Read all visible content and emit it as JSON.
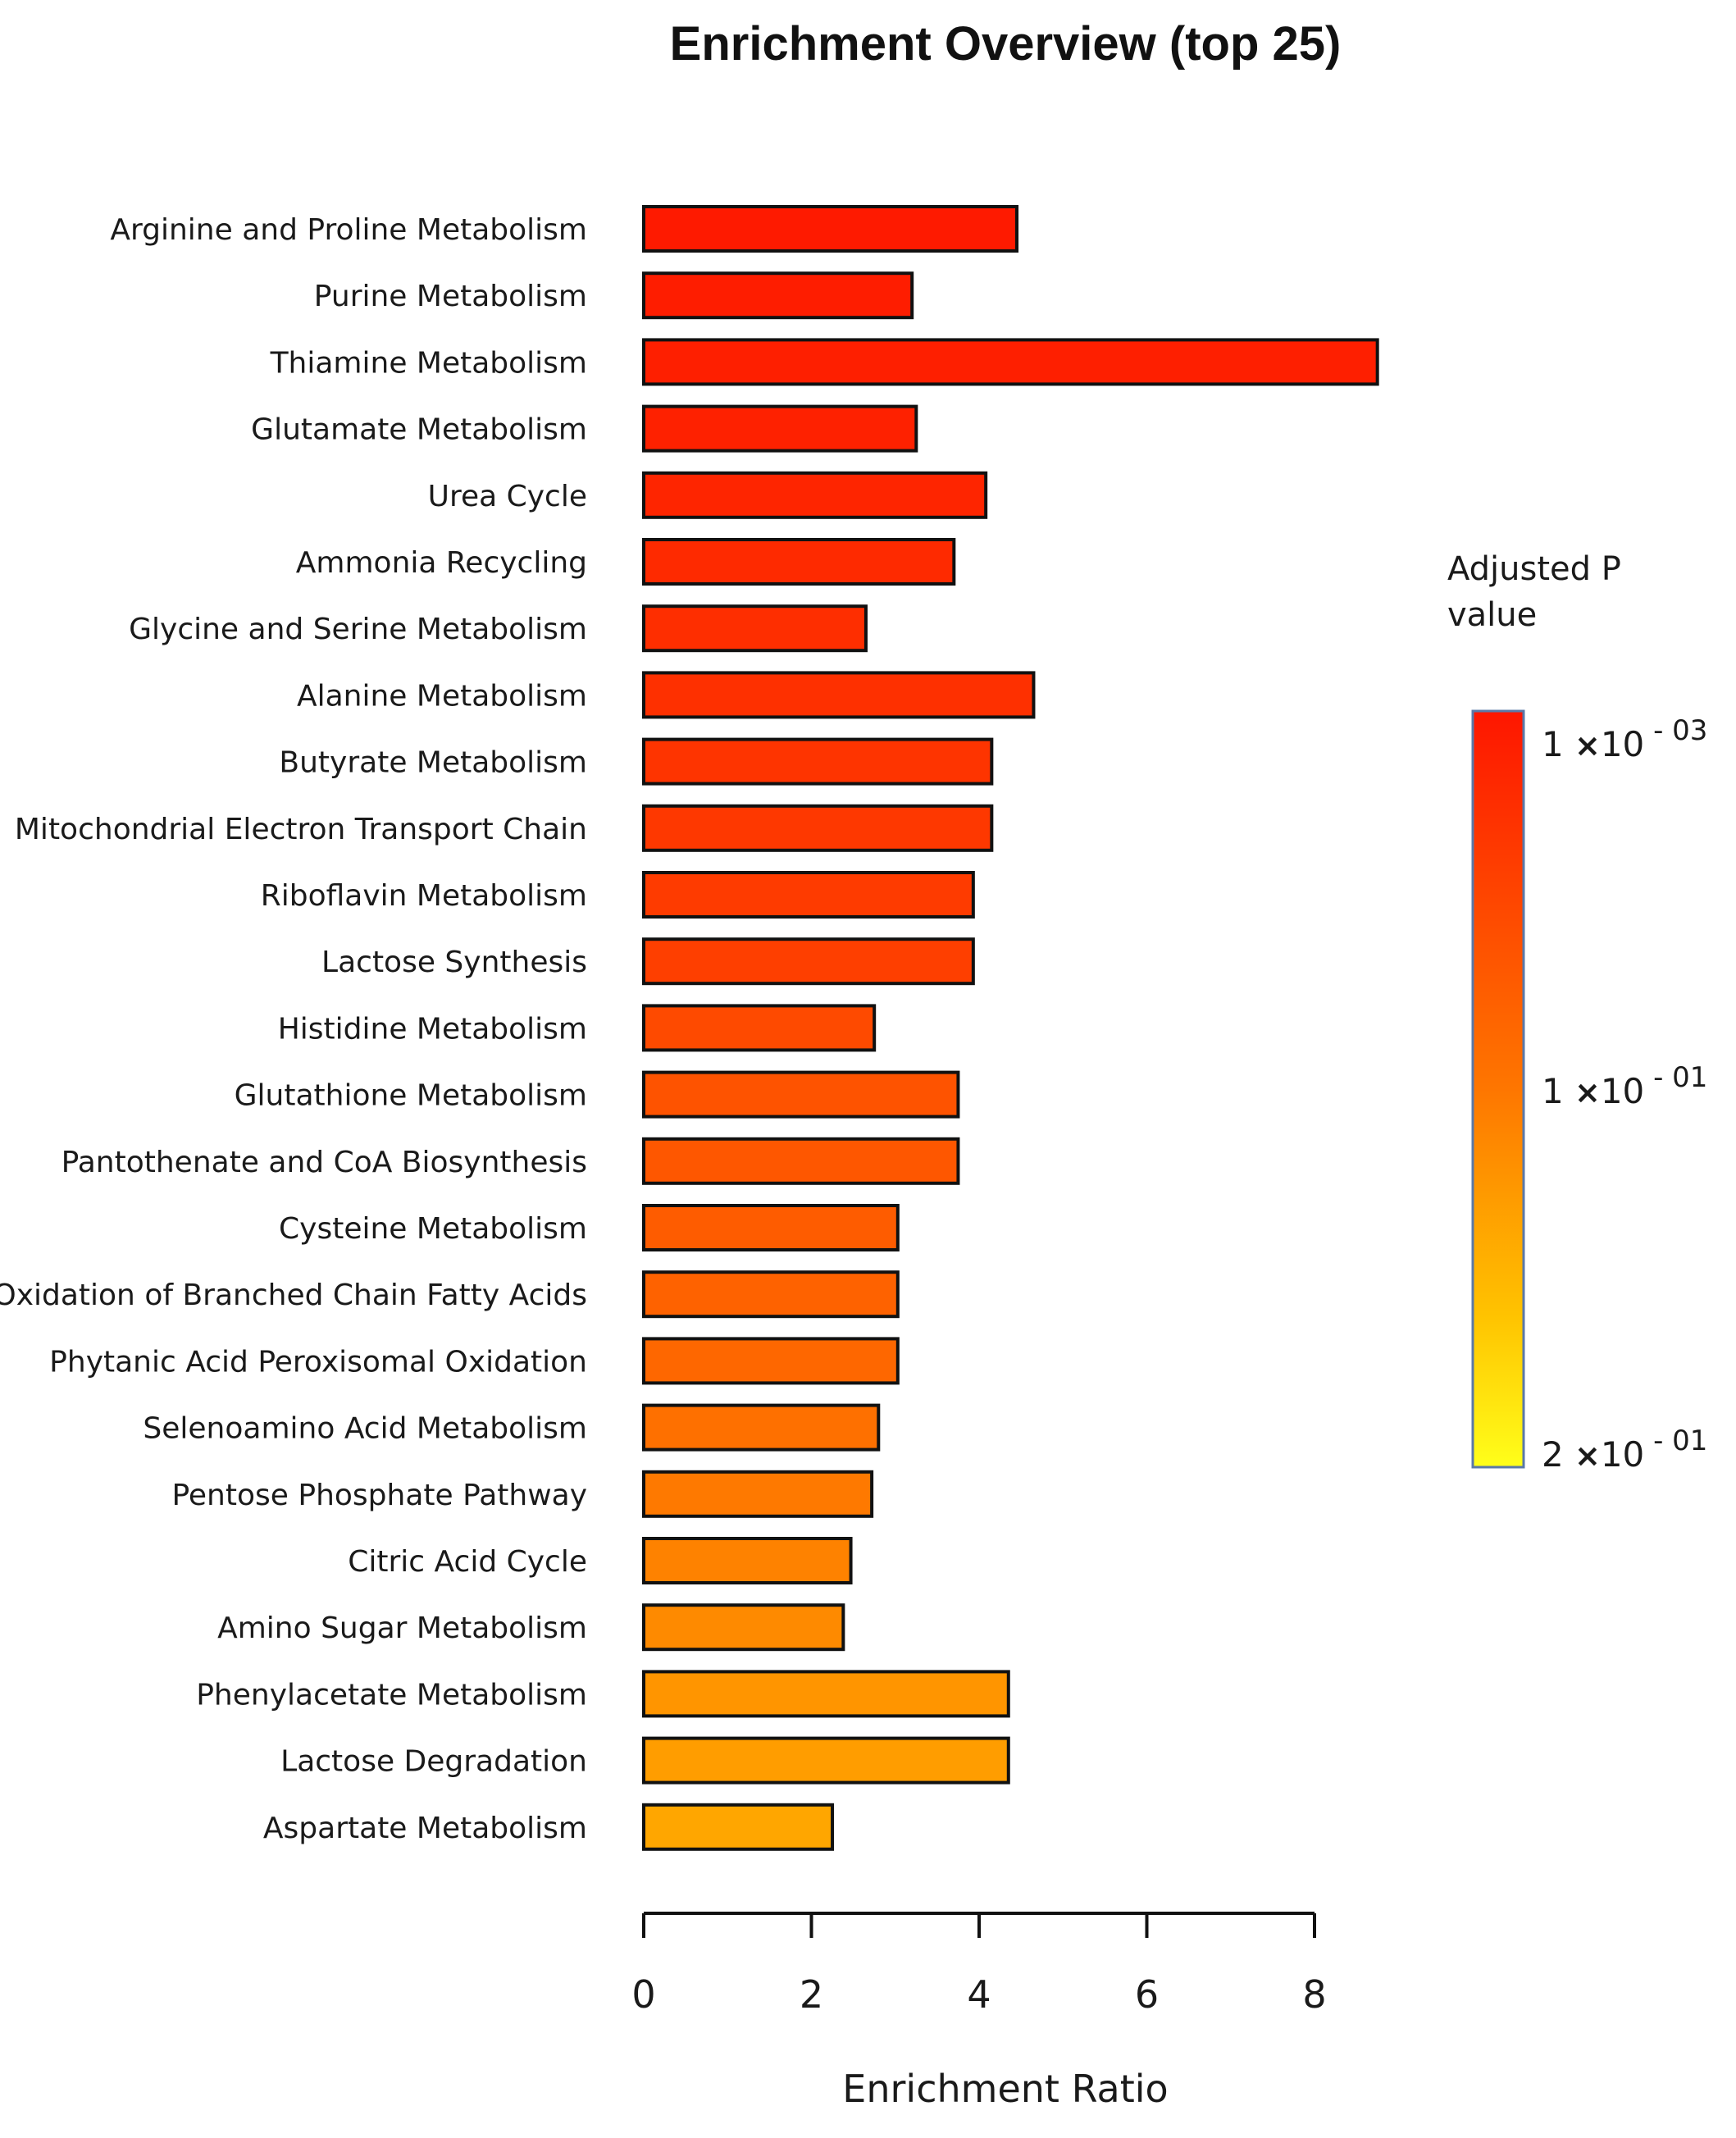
{
  "chart_data": {
    "type": "bar",
    "orientation": "horizontal",
    "title": "Enrichment Overview (top 25)",
    "xlabel": "Enrichment Ratio",
    "ylabel": "",
    "xlim": [
      0,
      8
    ],
    "xticks": [
      0,
      2,
      4,
      6,
      8
    ],
    "categories": [
      "Arginine and Proline Metabolism",
      "Purine Metabolism",
      "Thiamine Metabolism",
      "Glutamate Metabolism",
      "Urea Cycle",
      "Ammonia Recycling",
      "Glycine and Serine Metabolism",
      "Alanine Metabolism",
      "Butyrate Metabolism",
      "Mitochondrial Electron Transport Chain",
      "Riboflavin Metabolism",
      "Lactose Synthesis",
      "Histidine Metabolism",
      "Glutathione Metabolism",
      "Pantothenate and CoA Biosynthesis",
      "Cysteine Metabolism",
      "Oxidation of Branched Chain Fatty Acids",
      "Phytanic Acid Peroxisomal Oxidation",
      "Selenoamino Acid Metabolism",
      "Pentose Phosphate Pathway",
      "Citric Acid Cycle",
      "Amino Sugar Metabolism",
      "Phenylacetate Metabolism",
      "Lactose Degradation",
      "Aspartate Metabolism"
    ],
    "values": [
      4.45,
      3.2,
      8.75,
      3.25,
      4.08,
      3.7,
      2.65,
      4.65,
      4.15,
      4.15,
      3.93,
      3.93,
      2.75,
      3.75,
      3.75,
      3.03,
      3.03,
      3.03,
      2.8,
      2.72,
      2.47,
      2.38,
      4.35,
      4.35,
      2.25
    ],
    "colors": [
      "#fe1a00",
      "#fe1d00",
      "#fe1f00",
      "#fe2100",
      "#fe2500",
      "#fe2a00",
      "#fe2e00",
      "#fe3000",
      "#fe3400",
      "#fe3800",
      "#fe3b00",
      "#fe3f00",
      "#fe4a00",
      "#fe5300",
      "#fe5700",
      "#fe5c00",
      "#fe6200",
      "#fe6700",
      "#fe7000",
      "#fe7900",
      "#fe8200",
      "#fe8a00",
      "#ff9500",
      "#ff9d00",
      "#ffa600"
    ],
    "legend": {
      "title_lines": [
        "Adjusted P",
        "value"
      ],
      "position": "right",
      "labels": [
        {
          "base": "1",
          "times": "×",
          "ten": "10",
          "exp": "- 03"
        },
        {
          "base": "1",
          "times": "×",
          "ten": "10",
          "exp": "- 01"
        },
        {
          "base": "2",
          "times": "×",
          "ten": "10",
          "exp": "- 01"
        }
      ],
      "gradient_colors": [
        "#fe1600",
        "#fe7600",
        "#ffc300",
        "#ffff1a"
      ]
    }
  }
}
